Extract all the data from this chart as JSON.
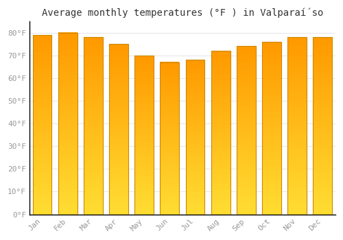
{
  "title": "Average monthly temperatures (°F ) in Valparaí́so",
  "categories": [
    "Jan",
    "Feb",
    "Mar",
    "Apr",
    "May",
    "Jun",
    "Jul",
    "Aug",
    "Sep",
    "Oct",
    "Nov",
    "Dec"
  ],
  "values": [
    79,
    80,
    78,
    75,
    70,
    67,
    68,
    72,
    74,
    76,
    78,
    78
  ],
  "bar_color_top": "#FFDD44",
  "bar_color_bottom": "#FFA500",
  "bar_color_edge": "#CC8800",
  "background_color": "#FFFFFF",
  "grid_color": "#E8E8E8",
  "ytick_labels": [
    "0°F",
    "10°F",
    "20°F",
    "30°F",
    "40°F",
    "50°F",
    "60°F",
    "70°F",
    "80°F"
  ],
  "ytick_values": [
    0,
    10,
    20,
    30,
    40,
    50,
    60,
    70,
    80
  ],
  "ylim": [
    0,
    85
  ],
  "title_fontsize": 10,
  "tick_fontsize": 8,
  "tick_color": "#999999",
  "left_spine_color": "#000000"
}
